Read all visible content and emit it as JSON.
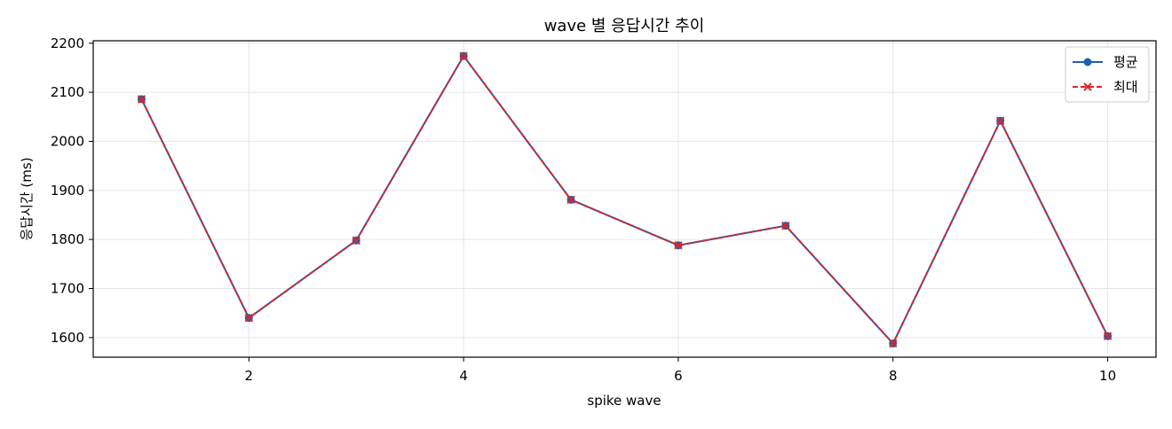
{
  "chart_data": {
    "type": "line",
    "title": "wave 별 응답시간 추이",
    "xlabel": "spike wave",
    "ylabel": "응답시간 (ms)",
    "x": [
      1,
      2,
      3,
      4,
      5,
      6,
      7,
      8,
      9,
      10
    ],
    "xlim": [
      0.55,
      10.45
    ],
    "ylim": [
      1560,
      2205
    ],
    "xticks": [
      2,
      4,
      6,
      8,
      10
    ],
    "yticks": [
      1600,
      1700,
      1800,
      1900,
      2000,
      2100,
      2200
    ],
    "grid": true,
    "legend": "top-right",
    "series": [
      {
        "name": "평균",
        "values": [
          2086,
          1640,
          1798,
          2174,
          1881,
          1788,
          1828,
          1588,
          2042,
          1603
        ],
        "color": "#1f5fb4",
        "style": "solid",
        "marker": "circle"
      },
      {
        "name": "최대",
        "values": [
          2086,
          1640,
          1798,
          2174,
          1881,
          1788,
          1828,
          1588,
          2042,
          1603
        ],
        "color": "#d62728",
        "style": "dashed",
        "marker": "x"
      }
    ]
  }
}
